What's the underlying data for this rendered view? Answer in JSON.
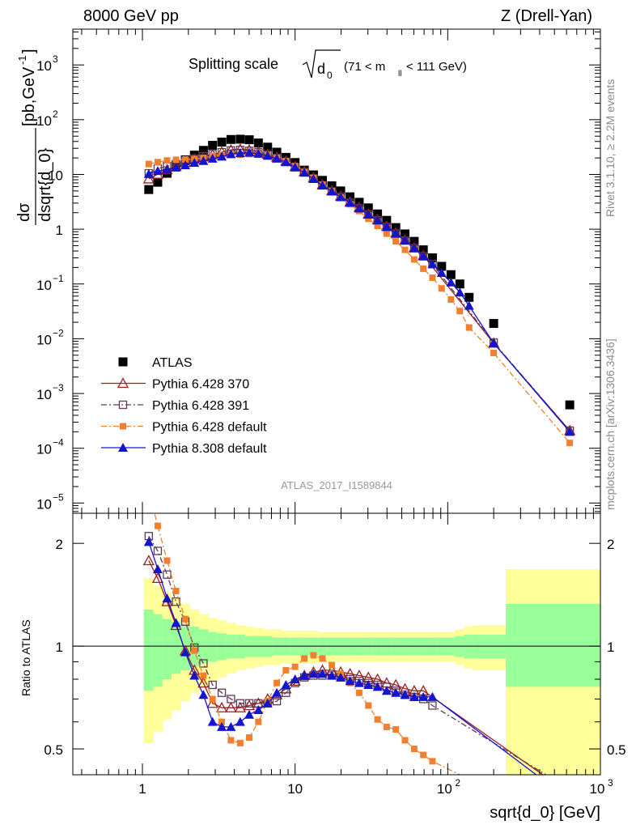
{
  "header": {
    "left": "8000 GeV pp",
    "right": "Z (Drell-Yan)"
  },
  "side_labels": {
    "rivet": "Rivet 3.1.10, ≥ 2.2M events",
    "mcplots": "mcplots.cern.ch [arXiv:1306.3436]"
  },
  "chart_data": [
    {
      "type": "scatter",
      "panel": "main",
      "title_prefix": "Splitting scale",
      "title_sqrt_base": "d",
      "title_sqrt_sub": "0",
      "title_range_left": "(71 < m",
      "title_range_sub": "ll",
      "title_range_right": " < 111 GeV)",
      "ylabel_numerator": "dσ",
      "ylabel_denominator": "dsqrt{d_0}",
      "ylabel_units": "[pb,GeV",
      "ylabel_units_sup": "-1",
      "ylabel_units_close": "]",
      "analysis_id": "ATLAS_2017_I1589844",
      "x_scale": "log",
      "y_scale": "log",
      "xlim": [
        0.35,
        1000
      ],
      "ylim": [
        6.5e-06,
        4500
      ],
      "yticks": [
        {
          "base": "10",
          "exp": "3",
          "value": 1000
        },
        {
          "base": "10",
          "exp": "2",
          "value": 100
        },
        {
          "base": "10",
          "exp": "",
          "value": 10
        },
        {
          "base": "1",
          "exp": "",
          "value": 1
        },
        {
          "base": "10",
          "exp": "−1",
          "value": 0.1
        },
        {
          "base": "10",
          "exp": "−2",
          "value": 0.01
        },
        {
          "base": "10",
          "exp": "−3",
          "value": 0.001
        },
        {
          "base": "10",
          "exp": "−4",
          "value": 0.0001
        },
        {
          "base": "10",
          "exp": "−5",
          "value": 1e-05
        }
      ],
      "legend_position": "bottom-left",
      "series": [
        {
          "name": "ATLAS",
          "color": "#000000",
          "marker": "filled-square",
          "line": "none",
          "x": [
            1.1,
            1.26,
            1.45,
            1.66,
            1.91,
            2.19,
            2.51,
            2.88,
            3.31,
            3.8,
            4.37,
            5.01,
            5.75,
            6.61,
            7.59,
            8.71,
            10.0,
            11.5,
            13.2,
            15.1,
            17.4,
            19.9,
            22.9,
            26.3,
            30.2,
            34.7,
            39.8,
            45.7,
            52.5,
            60.3,
            69.2,
            79.4,
            91.2,
            105,
            120,
            138,
            200,
            630
          ],
          "y": [
            5.3,
            7.2,
            10.5,
            14.5,
            18.5,
            22.5,
            27.5,
            34.0,
            39.0,
            43.5,
            44.0,
            43.0,
            37.5,
            31.5,
            25.5,
            20.5,
            16.5,
            12.0,
            9.8,
            7.8,
            6.2,
            5.0,
            3.9,
            3.1,
            2.45,
            1.9,
            1.45,
            1.07,
            0.82,
            0.6,
            0.42,
            0.3,
            0.21,
            0.148,
            0.1,
            0.057,
            0.019,
            0.00062
          ]
        },
        {
          "name": "Pythia 6.428 370",
          "color": "#9a1f1f",
          "marker": "open-triangle",
          "line": "solid",
          "x": [
            1.1,
            1.26,
            1.45,
            1.66,
            1.91,
            2.19,
            2.51,
            2.88,
            3.31,
            3.8,
            4.37,
            5.01,
            5.75,
            6.61,
            7.59,
            8.71,
            10.0,
            11.5,
            13.2,
            15.1,
            17.4,
            19.9,
            22.9,
            26.3,
            30.2,
            34.7,
            39.8,
            45.7,
            52.5,
            60.3,
            69.2,
            200,
            630
          ],
          "y": [
            8.3,
            10.1,
            12.2,
            14.2,
            16.6,
            19.0,
            21.0,
            23.0,
            25.5,
            28.0,
            28.8,
            28.0,
            26.0,
            23.5,
            20.7,
            17.5,
            14.0,
            11.3,
            8.7,
            6.5,
            5.05,
            4.0,
            3.15,
            2.5,
            1.9,
            1.5,
            1.13,
            0.86,
            0.64,
            0.46,
            0.33,
            0.0083,
            0.00021
          ]
        },
        {
          "name": "Pythia 6.428 391",
          "color": "#5f3a5a",
          "marker": "open-square",
          "line": "dash-dot",
          "x": [
            1.1,
            1.26,
            1.45,
            1.66,
            1.91,
            2.19,
            2.51,
            2.88,
            3.31,
            3.8,
            4.37,
            5.01,
            5.75,
            6.61,
            7.59,
            8.71,
            10.0,
            11.5,
            13.2,
            15.1,
            17.4,
            19.9,
            22.9,
            26.3,
            30.2,
            34.7,
            39.8,
            45.7,
            52.5,
            60.3,
            69.2,
            79.4,
            200,
            630
          ],
          "y": [
            10.5,
            12.8,
            14.2,
            15.5,
            17.6,
            19.5,
            21.5,
            23.5,
            25.5,
            27.5,
            28.0,
            27.0,
            25.5,
            23.0,
            20.0,
            17.0,
            13.5,
            11.0,
            8.4,
            6.3,
            4.9,
            3.9,
            3.05,
            2.4,
            1.85,
            1.45,
            1.1,
            0.83,
            0.62,
            0.45,
            0.32,
            0.23,
            0.0085,
            0.00021
          ]
        },
        {
          "name": "Pythia 6.428 default",
          "color": "#f08030",
          "marker": "filled-square-small",
          "line": "dash-dot",
          "x": [
            1.1,
            1.26,
            1.45,
            1.66,
            1.91,
            2.19,
            2.51,
            2.88,
            3.31,
            3.8,
            4.37,
            5.01,
            5.75,
            6.61,
            7.59,
            8.71,
            10.0,
            11.5,
            13.2,
            15.1,
            17.4,
            19.9,
            22.9,
            26.3,
            30.2,
            34.7,
            39.8,
            45.7,
            52.5,
            60.3,
            69.2,
            79.4,
            91.2,
            105,
            120,
            138,
            200,
            630
          ],
          "y": [
            15.5,
            16.8,
            18.0,
            18.5,
            18.8,
            19.2,
            20.0,
            21.5,
            22.5,
            23.0,
            23.0,
            23.5,
            23.0,
            22.0,
            20.0,
            17.5,
            14.2,
            11.0,
            8.7,
            6.5,
            4.95,
            3.8,
            2.85,
            2.15,
            1.55,
            1.15,
            0.83,
            0.6,
            0.42,
            0.28,
            0.19,
            0.13,
            0.083,
            0.052,
            0.032,
            0.016,
            0.0055,
            0.000125
          ]
        },
        {
          "name": "Pythia 8.308 default",
          "color": "#1414cc",
          "marker": "filled-triangle",
          "line": "solid",
          "x": [
            1.1,
            1.26,
            1.45,
            1.66,
            1.91,
            2.19,
            2.51,
            2.88,
            3.31,
            3.8,
            4.37,
            5.01,
            5.75,
            6.61,
            7.59,
            8.71,
            10.0,
            11.5,
            13.2,
            15.1,
            17.4,
            19.9,
            22.9,
            26.3,
            30.2,
            34.7,
            39.8,
            45.7,
            52.5,
            60.3,
            69.2,
            79.4,
            91.2,
            105,
            120,
            138,
            200,
            630
          ],
          "y": [
            10.2,
            11.6,
            12.3,
            13.4,
            14.8,
            16.4,
            17.7,
            19.5,
            21.2,
            23.5,
            24.5,
            25.0,
            24.0,
            22.0,
            19.5,
            16.8,
            13.5,
            10.8,
            8.3,
            6.3,
            4.95,
            3.85,
            3.05,
            2.4,
            1.85,
            1.45,
            1.1,
            0.83,
            0.62,
            0.45,
            0.32,
            0.23,
            0.16,
            0.107,
            0.07,
            0.04,
            0.0083,
            0.0002
          ]
        }
      ]
    },
    {
      "type": "line",
      "panel": "ratio",
      "ylabel": "Ratio to ATLAS",
      "xlabel": "sqrt{d_0} [GeV]",
      "x_scale": "log",
      "y_scale": "log",
      "xlim": [
        0.35,
        1000
      ],
      "ylim": [
        0.42,
        2.45
      ],
      "reference_line": 1,
      "xticks": [
        {
          "base": "1",
          "exp": "",
          "value": 1
        },
        {
          "base": "10",
          "exp": "",
          "value": 10
        },
        {
          "base": "10",
          "exp": "2",
          "value": 100
        },
        {
          "base": "10",
          "exp": "3",
          "value": 1000
        }
      ],
      "yticks": [
        {
          "label": "2",
          "value": 2
        },
        {
          "label": "1",
          "value": 1
        },
        {
          "label": "0.5",
          "value": 0.5
        }
      ],
      "uncertainty_bands": {
        "x_edges": [
          1.02,
          1.18,
          1.35,
          1.55,
          1.78,
          2.05,
          2.35,
          2.7,
          3.1,
          3.55,
          4.1,
          4.7,
          5.4,
          6.2,
          7.1,
          8.15,
          9.35,
          10.7,
          12.3,
          14.1,
          16.2,
          18.6,
          21.3,
          24.5,
          28.1,
          32.3,
          37.0,
          42.5,
          48.8,
          56.0,
          64.3,
          73.8,
          84.7,
          97.2,
          111.5,
          128,
          147,
          240,
          1000
        ],
        "inner_hi": [
          1.28,
          1.24,
          1.2,
          1.18,
          1.16,
          1.14,
          1.12,
          1.1,
          1.09,
          1.08,
          1.08,
          1.07,
          1.07,
          1.07,
          1.06,
          1.06,
          1.06,
          1.06,
          1.06,
          1.06,
          1.06,
          1.06,
          1.06,
          1.06,
          1.06,
          1.06,
          1.06,
          1.06,
          1.06,
          1.06,
          1.06,
          1.06,
          1.06,
          1.06,
          1.07,
          1.08,
          1.08,
          1.33
        ],
        "inner_lo": [
          0.74,
          0.76,
          0.8,
          0.83,
          0.85,
          0.87,
          0.89,
          0.9,
          0.91,
          0.92,
          0.92,
          0.93,
          0.93,
          0.93,
          0.94,
          0.94,
          0.94,
          0.94,
          0.94,
          0.94,
          0.94,
          0.94,
          0.94,
          0.94,
          0.94,
          0.94,
          0.94,
          0.94,
          0.94,
          0.94,
          0.94,
          0.94,
          0.94,
          0.94,
          0.93,
          0.92,
          0.92,
          0.76
        ],
        "outer_hi": [
          1.58,
          1.5,
          1.44,
          1.38,
          1.33,
          1.28,
          1.24,
          1.21,
          1.19,
          1.17,
          1.15,
          1.14,
          1.13,
          1.12,
          1.12,
          1.11,
          1.11,
          1.11,
          1.11,
          1.1,
          1.1,
          1.1,
          1.1,
          1.1,
          1.1,
          1.1,
          1.1,
          1.1,
          1.1,
          1.1,
          1.1,
          1.1,
          1.1,
          1.1,
          1.12,
          1.14,
          1.15,
          1.68
        ],
        "outer_lo": [
          0.52,
          0.56,
          0.61,
          0.65,
          0.69,
          0.73,
          0.76,
          0.79,
          0.81,
          0.83,
          0.85,
          0.86,
          0.87,
          0.88,
          0.88,
          0.89,
          0.89,
          0.89,
          0.89,
          0.9,
          0.9,
          0.9,
          0.9,
          0.9,
          0.9,
          0.9,
          0.9,
          0.9,
          0.9,
          0.9,
          0.9,
          0.9,
          0.9,
          0.9,
          0.88,
          0.86,
          0.85,
          0.36
        ],
        "inner_color": "#99ff99",
        "outer_color": "#ffff99"
      },
      "series": [
        {
          "name": "Pythia 6.428 370",
          "color": "#9a1f1f",
          "marker": "open-triangle",
          "line": "solid",
          "x": [
            1.1,
            1.26,
            1.45,
            1.66,
            1.91,
            2.19,
            2.51,
            2.88,
            3.31,
            3.8,
            4.37,
            5.01,
            5.75,
            6.61,
            7.59,
            8.71,
            10.0,
            11.5,
            13.2,
            15.1,
            17.4,
            19.9,
            22.9,
            26.3,
            30.2,
            34.7,
            39.8,
            45.7,
            52.5,
            60.3,
            69.2,
            420
          ],
          "y": [
            1.78,
            1.58,
            1.35,
            1.15,
            0.97,
            0.85,
            0.78,
            0.68,
            0.66,
            0.66,
            0.66,
            0.67,
            0.68,
            0.7,
            0.72,
            0.75,
            0.79,
            0.82,
            0.84,
            0.85,
            0.85,
            0.84,
            0.83,
            0.82,
            0.81,
            0.8,
            0.78,
            0.77,
            0.75,
            0.74,
            0.74,
            0.42
          ]
        },
        {
          "name": "Pythia 6.428 391",
          "color": "#5f3a5a",
          "marker": "open-square",
          "line": "dash-dot",
          "x": [
            1.1,
            1.26,
            1.45,
            1.66,
            1.91,
            2.19,
            2.51,
            2.88,
            3.31,
            3.8,
            4.37,
            5.01,
            5.75,
            6.61,
            7.59,
            8.71,
            10.0,
            11.5,
            13.2,
            15.1,
            17.4,
            19.9,
            22.9,
            26.3,
            30.2,
            34.7,
            39.8,
            45.7,
            52.5,
            60.3,
            69.2,
            79.4,
            440
          ],
          "y": [
            2.1,
            1.9,
            1.62,
            1.35,
            1.18,
            0.99,
            0.89,
            0.77,
            0.73,
            0.7,
            0.68,
            0.68,
            0.68,
            0.68,
            0.69,
            0.73,
            0.78,
            0.81,
            0.82,
            0.82,
            0.82,
            0.81,
            0.8,
            0.79,
            0.78,
            0.77,
            0.76,
            0.74,
            0.72,
            0.71,
            0.7,
            0.67,
            0.42
          ]
        },
        {
          "name": "Pythia 6.428 default",
          "color": "#f08030",
          "marker": "filled-square-small",
          "line": "dash-dot",
          "x": [
            1.1,
            1.26,
            1.45,
            1.66,
            1.91,
            2.19,
            2.51,
            2.88,
            3.31,
            3.8,
            4.37,
            5.01,
            5.75,
            6.61,
            7.59,
            8.71,
            10.0,
            11.5,
            13.2,
            15.1,
            17.4,
            19.9,
            22.9,
            26.3,
            30.2,
            34.7,
            39.8,
            45.7,
            52.5,
            60.3,
            69.2,
            79.4,
            120
          ],
          "y": [
            2.85,
            2.25,
            1.78,
            1.45,
            1.2,
            0.97,
            0.82,
            0.7,
            0.6,
            0.53,
            0.52,
            0.54,
            0.6,
            0.69,
            0.78,
            0.85,
            0.87,
            0.92,
            0.94,
            0.92,
            0.88,
            0.83,
            0.78,
            0.73,
            0.67,
            0.61,
            0.58,
            0.57,
            0.53,
            0.5,
            0.48,
            0.46,
            0.42
          ]
        },
        {
          "name": "Pythia 8.308 default",
          "color": "#1414cc",
          "marker": "filled-triangle",
          "line": "solid",
          "x": [
            1.1,
            1.26,
            1.45,
            1.66,
            1.91,
            2.19,
            2.51,
            2.88,
            3.31,
            3.8,
            4.37,
            5.01,
            5.75,
            6.61,
            7.59,
            8.71,
            10.0,
            11.5,
            13.2,
            15.1,
            17.4,
            19.9,
            22.9,
            26.3,
            30.2,
            34.7,
            39.8,
            45.7,
            52.5,
            60.3,
            69.2,
            79.4,
            380
          ],
          "y": [
            2.02,
            1.68,
            1.38,
            1.17,
            0.96,
            0.82,
            0.72,
            0.6,
            0.58,
            0.58,
            0.6,
            0.63,
            0.65,
            0.68,
            0.73,
            0.77,
            0.8,
            0.82,
            0.83,
            0.83,
            0.82,
            0.81,
            0.79,
            0.78,
            0.77,
            0.76,
            0.74,
            0.73,
            0.72,
            0.71,
            0.71,
            0.71,
            0.42
          ]
        }
      ]
    }
  ]
}
